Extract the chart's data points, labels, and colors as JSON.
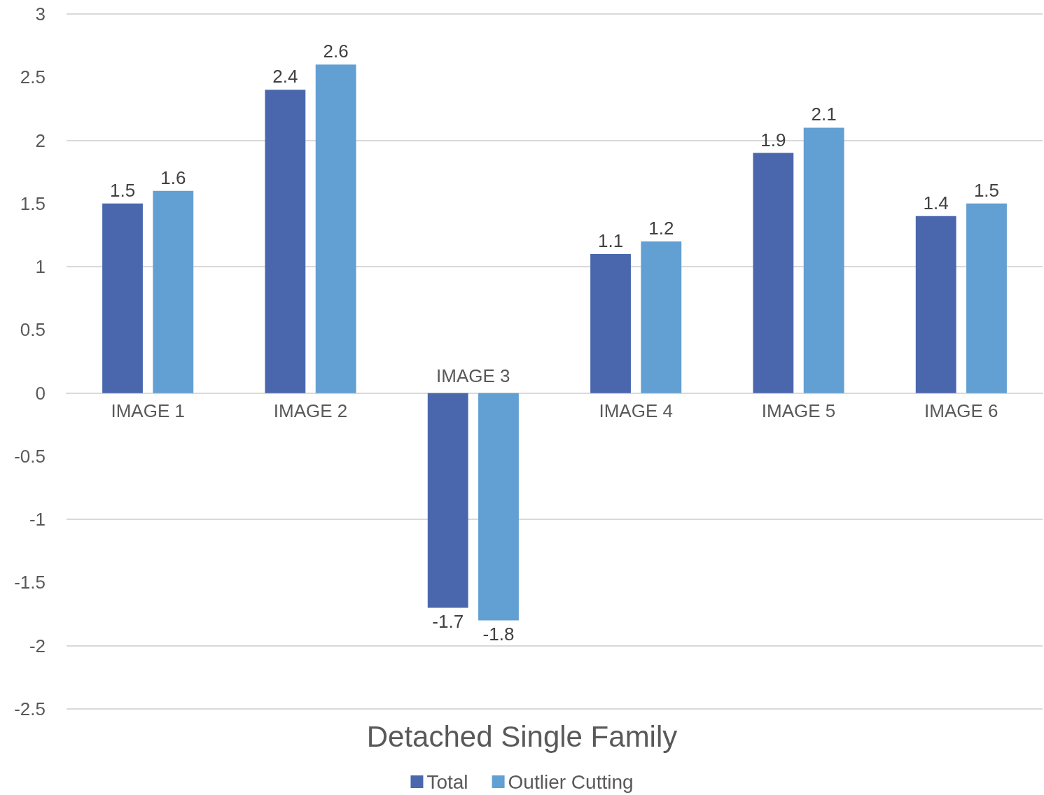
{
  "chart_data": {
    "type": "bar",
    "title": "Detached Single Family",
    "categories": [
      "IMAGE 1",
      "IMAGE 2",
      "IMAGE 3",
      "IMAGE 4",
      "IMAGE 5",
      "IMAGE 6"
    ],
    "series": [
      {
        "name": "Total",
        "color": "#4a67ae",
        "values": [
          1.5,
          2.4,
          -1.7,
          1.1,
          1.9,
          1.4
        ]
      },
      {
        "name": "Outlier Cutting",
        "color": "#629fd2",
        "values": [
          1.6,
          2.6,
          -1.8,
          1.2,
          2.1,
          1.5
        ]
      }
    ],
    "ylim": [
      -2.5,
      3
    ],
    "yticks": [
      -2.5,
      -2,
      -1.5,
      -1,
      -0.5,
      0,
      0.5,
      1,
      1.5,
      2,
      2.5,
      3
    ],
    "grid": "y",
    "legend": "bottom",
    "data_labels": true
  }
}
